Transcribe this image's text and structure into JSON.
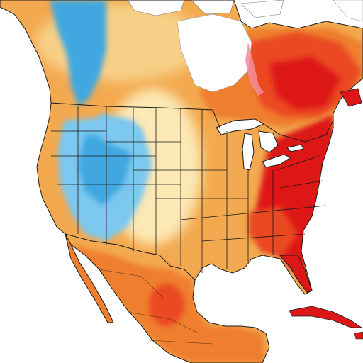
{
  "map": {
    "kind": "temperature-anomaly",
    "region": "North America",
    "palette": {
      "background": "#ffffff",
      "ocean": "#ffffff",
      "lake": "#ffffff",
      "cold_strong": "#3fa7e0",
      "cold": "#7cc8ef",
      "cool": "#b9e2f6",
      "neutral": "#fbe8b4",
      "mild": "#f7cf86",
      "warm": "#f3a94f",
      "warmer": "#ef7f2f",
      "hot": "#ea4a22",
      "very_hot": "#dd1717",
      "pink_fringe": "#f38d9a",
      "border": "#1a1a1a",
      "ice": "#f4f4f4"
    },
    "zones": [
      {
        "name": "pacific-northwest-coast",
        "tone": "warm"
      },
      {
        "name": "northern-rockies-cold",
        "tone": "cold_strong"
      },
      {
        "name": "great-basin-cold",
        "tone": "cold"
      },
      {
        "name": "great-plains",
        "tone": "neutral"
      },
      {
        "name": "midwest",
        "tone": "warm"
      },
      {
        "name": "southeast-us",
        "tone": "very_hot"
      },
      {
        "name": "northeast-us",
        "tone": "very_hot"
      },
      {
        "name": "quebec-labrador",
        "tone": "hot"
      },
      {
        "name": "hudson-bay-ice",
        "tone": "ice"
      },
      {
        "name": "canadian-prairies",
        "tone": "mild"
      },
      {
        "name": "mexico",
        "tone": "warmer"
      },
      {
        "name": "cuba",
        "tone": "very_hot"
      }
    ]
  }
}
